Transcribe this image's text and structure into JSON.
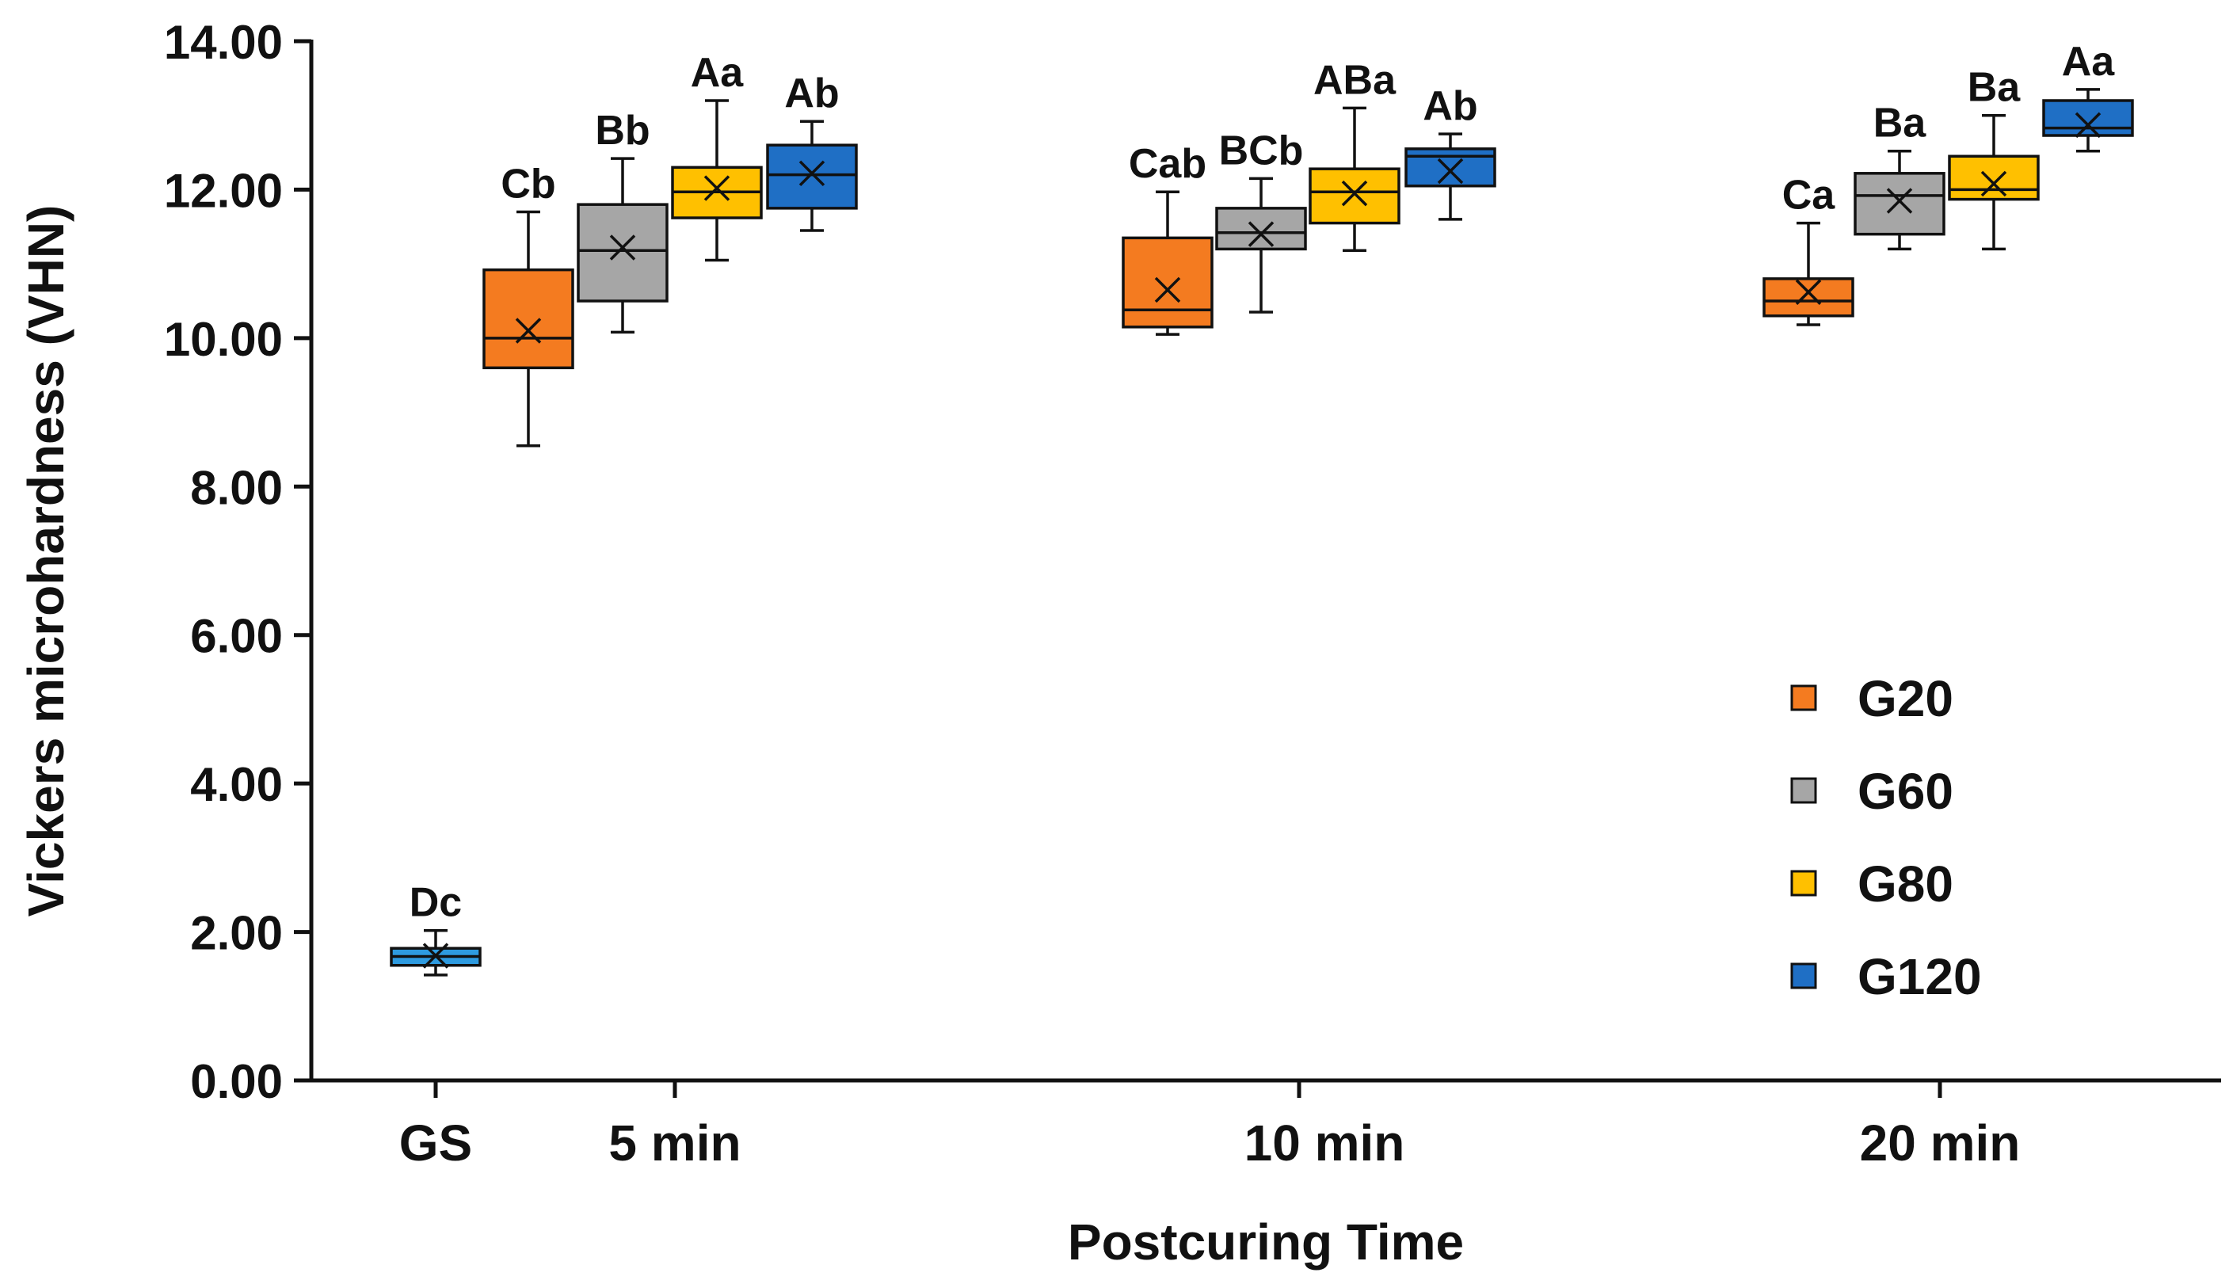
{
  "chart_data": {
    "type": "box",
    "xlabel": "Postcuring Time",
    "ylabel": "Vickers microhardness (VHN)",
    "ylim": [
      0,
      14
    ],
    "yticks": [
      0,
      2,
      4,
      6,
      8,
      10,
      12,
      14
    ],
    "ytick_labels": [
      "0.00",
      "2.00",
      "4.00",
      "6.00",
      "8.00",
      "10.00",
      "12.00",
      "14.00"
    ],
    "categories": [
      "GS",
      "5 min",
      "10 min",
      "20 min"
    ],
    "grid": false,
    "legend_position": "right",
    "legend": [
      {
        "name": "G20",
        "color": "#F47B20"
      },
      {
        "name": "G60",
        "color": "#A6A6A6"
      },
      {
        "name": "G80",
        "color": "#FFC000"
      },
      {
        "name": "G120",
        "color": "#1F6FC5"
      }
    ],
    "boxes": [
      {
        "category": "GS",
        "group": "GS",
        "color": "#2E9BE0",
        "min": 1.42,
        "q1": 1.55,
        "median": 1.67,
        "q3": 1.78,
        "max": 2.02,
        "mean": 1.68,
        "letter": "Dc"
      },
      {
        "category": "5 min",
        "group": "G20",
        "color": "#F47B20",
        "min": 8.55,
        "q1": 9.6,
        "median": 10.0,
        "q3": 10.92,
        "max": 11.7,
        "mean": 10.1,
        "letter": "Cb"
      },
      {
        "category": "5 min",
        "group": "G60",
        "color": "#A6A6A6",
        "min": 10.08,
        "q1": 10.5,
        "median": 11.18,
        "q3": 11.8,
        "max": 12.42,
        "mean": 11.22,
        "letter": "Bb"
      },
      {
        "category": "5 min",
        "group": "G80",
        "color": "#FFC000",
        "min": 11.05,
        "q1": 11.62,
        "median": 11.97,
        "q3": 12.3,
        "max": 13.2,
        "mean": 12.02,
        "letter": "Aa"
      },
      {
        "category": "5 min",
        "group": "G120",
        "color": "#1F6FC5",
        "min": 11.45,
        "q1": 11.75,
        "median": 12.2,
        "q3": 12.6,
        "max": 12.92,
        "mean": 12.22,
        "letter": "Ab"
      },
      {
        "category": "10 min",
        "group": "G20",
        "color": "#F47B20",
        "min": 10.05,
        "q1": 10.15,
        "median": 10.38,
        "q3": 11.35,
        "max": 11.97,
        "mean": 10.65,
        "letter": "Cab"
      },
      {
        "category": "10 min",
        "group": "G60",
        "color": "#A6A6A6",
        "min": 10.35,
        "q1": 11.2,
        "median": 11.42,
        "q3": 11.75,
        "max": 12.15,
        "mean": 11.4,
        "letter": "BCb"
      },
      {
        "category": "10 min",
        "group": "G80",
        "color": "#FFC000",
        "min": 11.18,
        "q1": 11.55,
        "median": 11.97,
        "q3": 12.28,
        "max": 13.1,
        "mean": 11.95,
        "letter": "ABa"
      },
      {
        "category": "10 min",
        "group": "G120",
        "color": "#1F6FC5",
        "min": 11.6,
        "q1": 12.05,
        "median": 12.45,
        "q3": 12.55,
        "max": 12.75,
        "mean": 12.25,
        "letter": "Ab"
      },
      {
        "category": "20 min",
        "group": "G20",
        "color": "#F47B20",
        "min": 10.18,
        "q1": 10.3,
        "median": 10.5,
        "q3": 10.8,
        "max": 11.55,
        "mean": 10.62,
        "letter": "Ca"
      },
      {
        "category": "20 min",
        "group": "G60",
        "color": "#A6A6A6",
        "min": 11.2,
        "q1": 11.4,
        "median": 11.92,
        "q3": 12.22,
        "max": 12.52,
        "mean": 11.85,
        "letter": "Ba"
      },
      {
        "category": "20 min",
        "group": "G80",
        "color": "#FFC000",
        "min": 11.2,
        "q1": 11.87,
        "median": 12.0,
        "q3": 12.45,
        "max": 13.0,
        "mean": 12.08,
        "letter": "Ba"
      },
      {
        "category": "20 min",
        "group": "G120",
        "color": "#1F6FC5",
        "min": 12.52,
        "q1": 12.73,
        "median": 12.83,
        "q3": 13.2,
        "max": 13.35,
        "mean": 12.87,
        "letter": "Aa"
      }
    ]
  }
}
